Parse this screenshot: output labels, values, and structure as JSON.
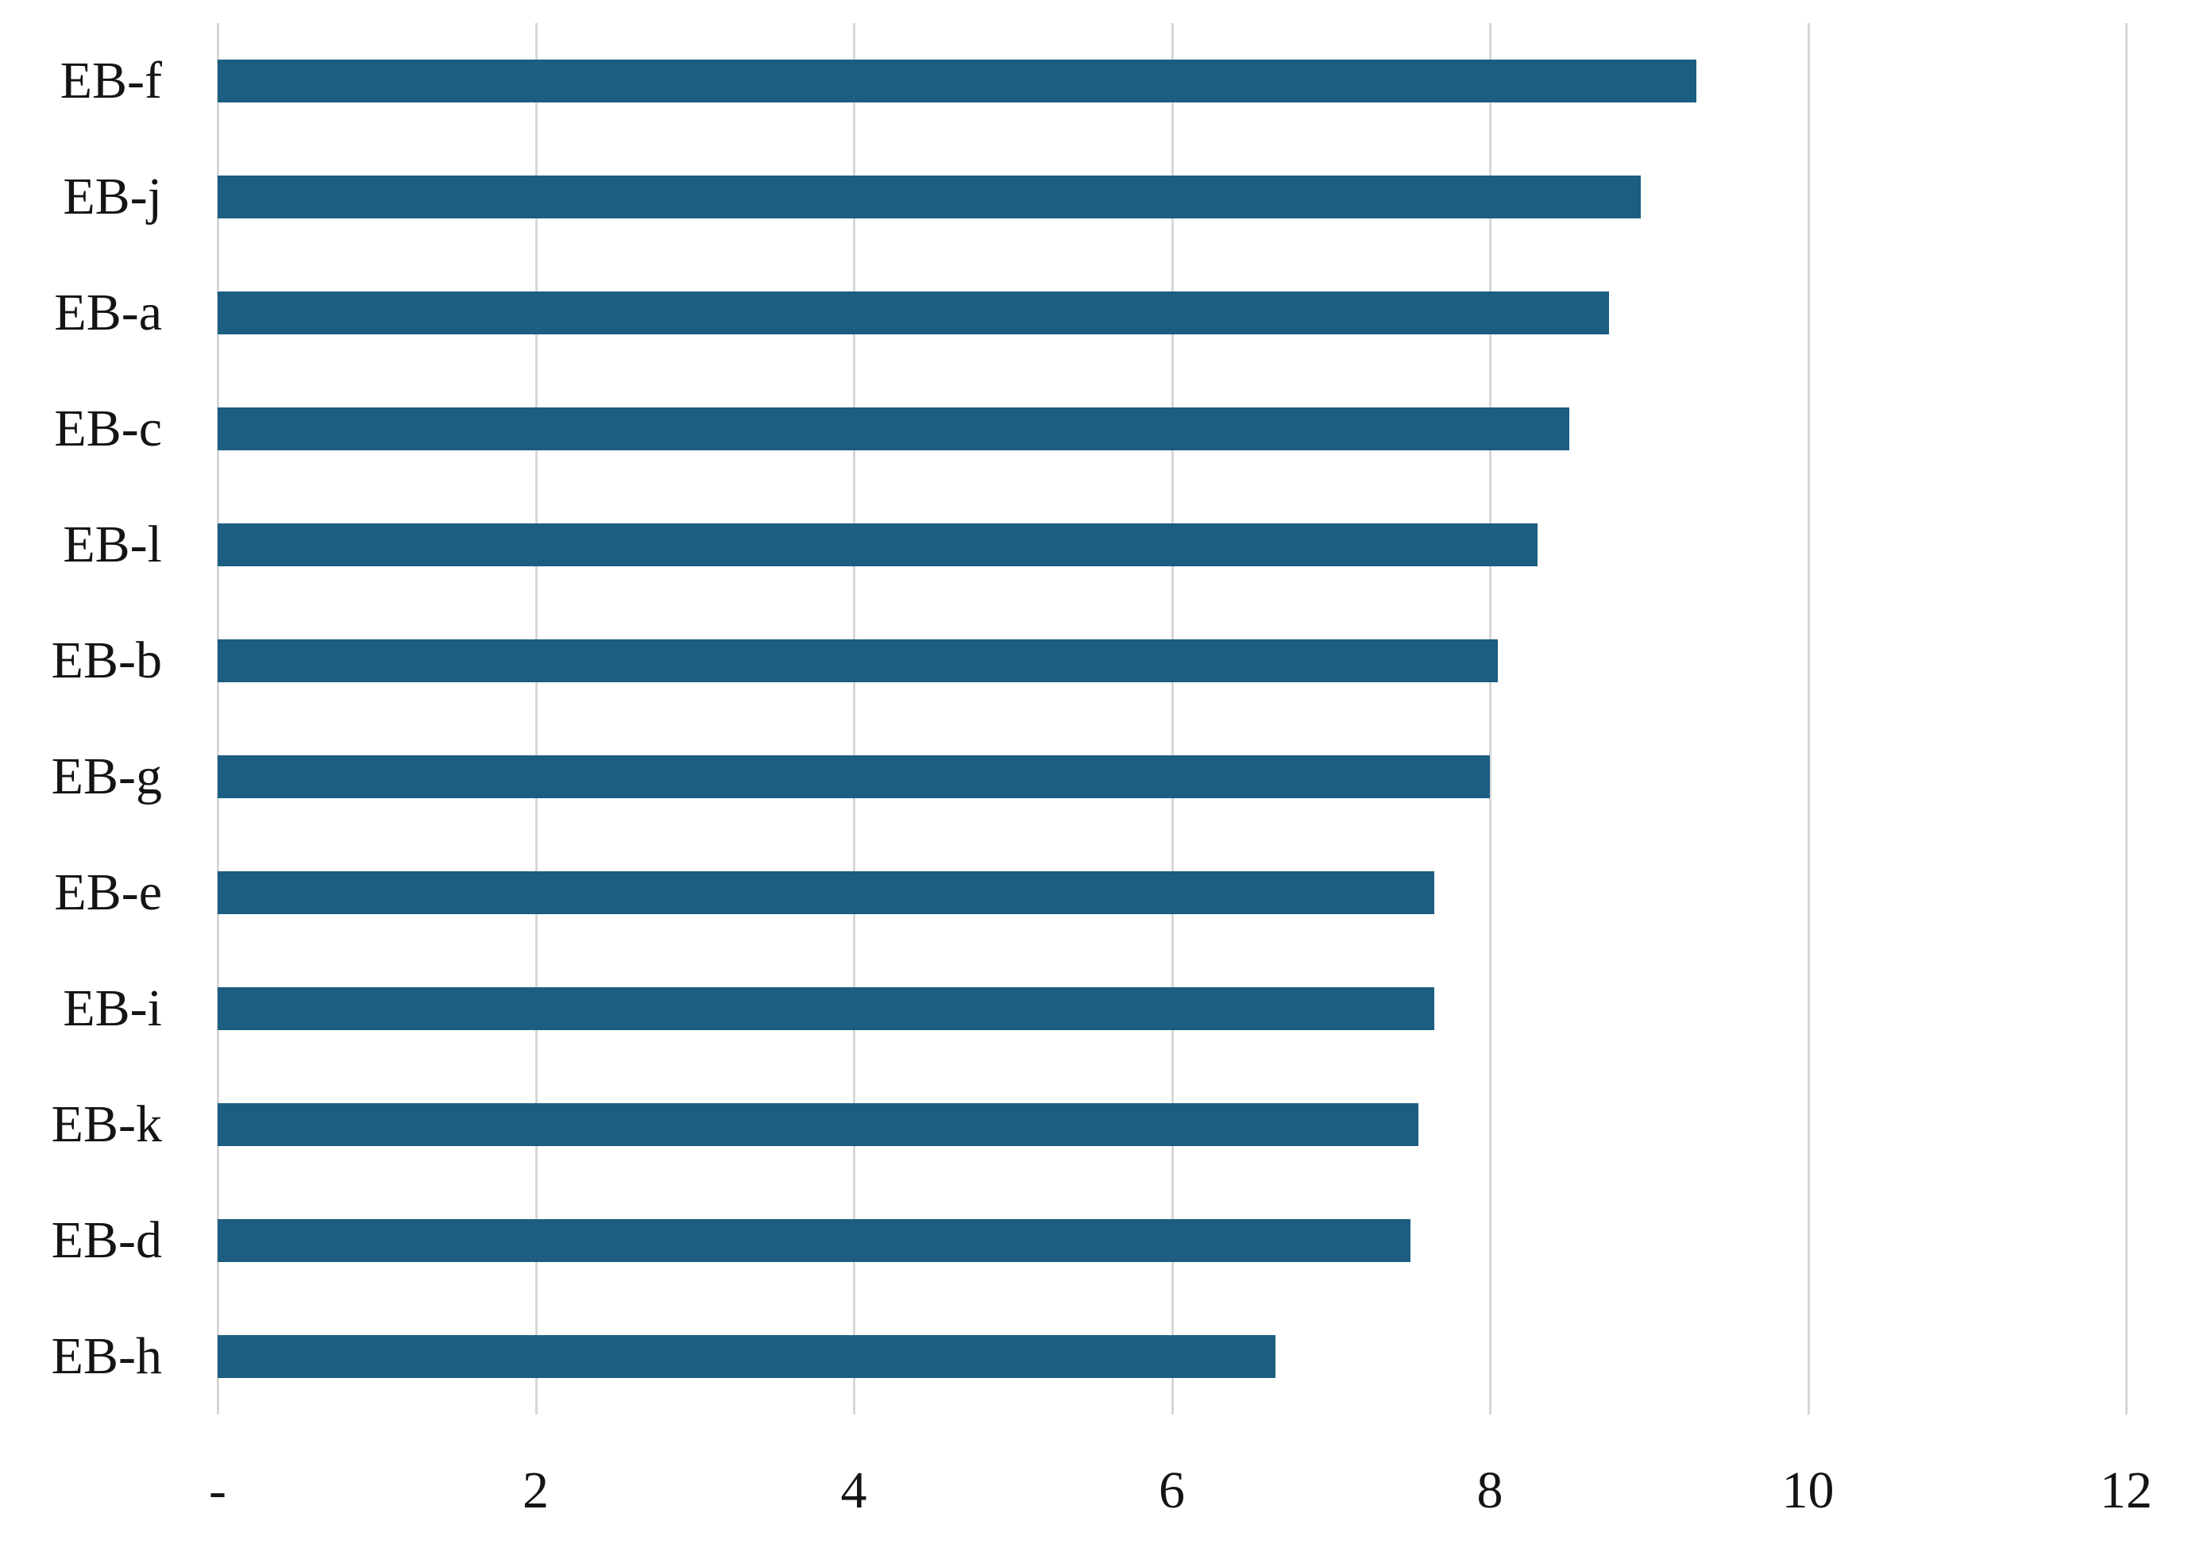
{
  "chart_data": {
    "type": "bar",
    "orientation": "horizontal",
    "title": "",
    "xlabel": "",
    "ylabel": "",
    "categories": [
      "EB-f",
      "EB-j",
      "EB-a",
      "EB-c",
      "EB-l",
      "EB-b",
      "EB-g",
      "EB-e",
      "EB-i",
      "EB-k",
      "EB-d",
      "EB-h"
    ],
    "values": [
      9.3,
      8.95,
      8.75,
      8.5,
      8.3,
      8.05,
      8.0,
      7.65,
      7.65,
      7.55,
      7.5,
      6.65
    ],
    "xlim": [
      0,
      12
    ],
    "x_ticks": [
      {
        "value": 0,
        "label": "-"
      },
      {
        "value": 2,
        "label": "2"
      },
      {
        "value": 4,
        "label": "4"
      },
      {
        "value": 6,
        "label": "6"
      },
      {
        "value": 8,
        "label": "8"
      },
      {
        "value": 10,
        "label": "10"
      },
      {
        "value": 12,
        "label": "12"
      }
    ],
    "grid": true,
    "legend": false,
    "colors": {
      "bar": "#1B5E81",
      "gridline": "#D7D7D7",
      "text": "#141414",
      "background": "#FFFFFF"
    }
  }
}
